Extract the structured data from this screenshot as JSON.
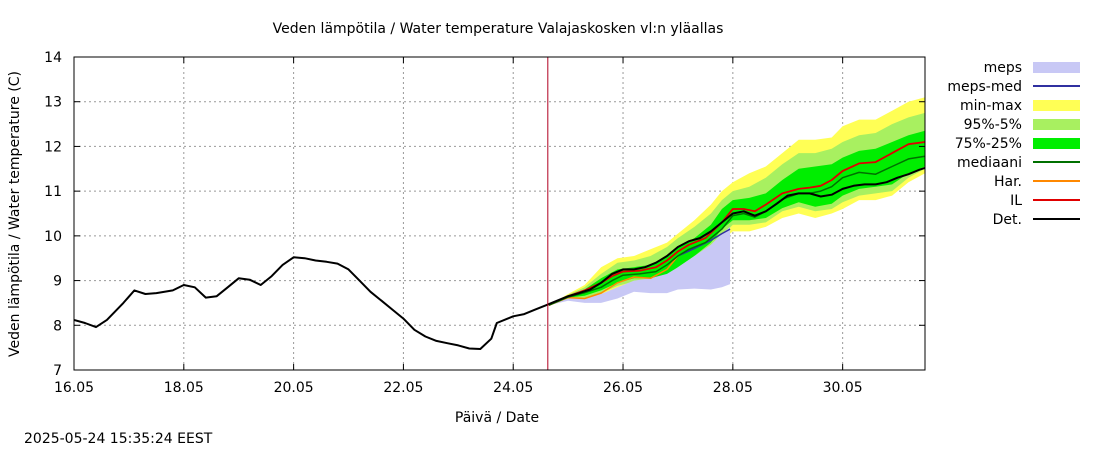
{
  "chart_data": {
    "type": "area",
    "title": "Veden lämpötila / Water temperature Valajaskosken vl:n yläallas",
    "xlabel": "Päivä / Date",
    "ylabel": "Veden lämpötila / Water temperature (C)",
    "timestamp": "2025-05-24 15:35:24 EEST",
    "xlim": [
      16.0,
      31.5
    ],
    "ylim": [
      7,
      14
    ],
    "x_ticks": [
      {
        "value": 16.0,
        "label": "16.05"
      },
      {
        "value": 18.0,
        "label": "18.05"
      },
      {
        "value": 20.0,
        "label": "20.05"
      },
      {
        "value": 22.0,
        "label": "22.05"
      },
      {
        "value": 24.0,
        "label": "24.05"
      },
      {
        "value": 26.0,
        "label": "26.05"
      },
      {
        "value": 28.0,
        "label": "28.05"
      },
      {
        "value": 30.0,
        "label": "30.05"
      }
    ],
    "y_ticks": [
      7,
      8,
      9,
      10,
      11,
      12,
      13,
      14
    ],
    "grid": true,
    "now_marker": 24.63,
    "legend_position": "right",
    "colors": {
      "meps": "#c8c8f5",
      "meps_med": "#3030a0",
      "min_max": "#ffff55",
      "p95_5": "#a8f060",
      "p75_25": "#00ee00",
      "mediaani": "#007000",
      "har": "#ff8800",
      "il": "#e00000",
      "det": "#000000",
      "now_line": "#b00020",
      "grid": "#999999"
    },
    "legend": [
      {
        "key": "meps",
        "label": "meps",
        "kind": "band"
      },
      {
        "key": "meps_med",
        "label": "meps-med",
        "kind": "line"
      },
      {
        "key": "min_max",
        "label": "min-max",
        "kind": "band"
      },
      {
        "key": "p95_5",
        "label": "95%-5%",
        "kind": "band"
      },
      {
        "key": "p75_25",
        "label": "75%-25%",
        "kind": "band"
      },
      {
        "key": "mediaani",
        "label": "mediaani",
        "kind": "line"
      },
      {
        "key": "har",
        "label": "Har.",
        "kind": "line"
      },
      {
        "key": "il",
        "label": "IL",
        "kind": "line"
      },
      {
        "key": "det",
        "label": "Det.",
        "kind": "line"
      }
    ],
    "series": {
      "det": {
        "x": [
          16.0,
          16.2,
          16.4,
          16.6,
          16.9,
          17.1,
          17.3,
          17.5,
          17.8,
          18.0,
          18.2,
          18.4,
          18.6,
          18.8,
          19.0,
          19.2,
          19.4,
          19.6,
          19.8,
          20.0,
          20.2,
          20.4,
          20.6,
          20.8,
          21.0,
          21.2,
          21.4,
          21.6,
          21.8,
          22.0,
          22.2,
          22.4,
          22.6,
          22.8,
          23.0,
          23.2,
          23.4,
          23.6,
          23.7,
          23.9,
          24.0,
          24.2,
          24.4,
          24.6,
          24.8,
          25.0,
          25.2,
          25.4,
          25.6,
          25.8,
          26.0,
          26.2,
          26.4,
          26.6,
          26.8,
          27.0,
          27.2,
          27.4,
          27.6,
          27.8,
          28.0,
          28.2,
          28.4,
          28.6,
          28.8,
          29.0,
          29.2,
          29.4,
          29.6,
          29.8,
          30.0,
          30.2,
          30.4,
          30.6,
          30.8,
          31.0,
          31.2,
          31.4,
          31.5
        ],
        "y": [
          8.12,
          8.05,
          7.96,
          8.12,
          8.5,
          8.78,
          8.7,
          8.72,
          8.78,
          8.9,
          8.85,
          8.62,
          8.65,
          8.85,
          9.05,
          9.02,
          8.9,
          9.1,
          9.35,
          9.52,
          9.5,
          9.45,
          9.42,
          9.38,
          9.25,
          9.0,
          8.75,
          8.55,
          8.35,
          8.15,
          7.9,
          7.75,
          7.65,
          7.6,
          7.55,
          7.48,
          7.47,
          7.7,
          8.05,
          8.15,
          8.2,
          8.25,
          8.35,
          8.45,
          8.55,
          8.65,
          8.72,
          8.8,
          8.95,
          9.15,
          9.25,
          9.25,
          9.3,
          9.4,
          9.55,
          9.75,
          9.88,
          9.95,
          10.1,
          10.3,
          10.5,
          10.55,
          10.45,
          10.55,
          10.72,
          10.9,
          10.95,
          10.95,
          10.88,
          10.92,
          11.05,
          11.12,
          11.15,
          11.15,
          11.2,
          11.3,
          11.38,
          11.48,
          11.52
        ]
      },
      "il": {
        "x": [
          24.65,
          25.0,
          25.3,
          25.6,
          25.8,
          26.0,
          26.3,
          26.6,
          26.8,
          27.0,
          27.2,
          27.5,
          27.8,
          28.0,
          28.2,
          28.4,
          28.6,
          28.9,
          29.2,
          29.4,
          29.6,
          29.8,
          30.0,
          30.3,
          30.6,
          30.9,
          31.2,
          31.5
        ],
        "y": [
          8.45,
          8.65,
          8.78,
          8.95,
          9.1,
          9.2,
          9.22,
          9.3,
          9.45,
          9.65,
          9.8,
          9.95,
          10.3,
          10.6,
          10.6,
          10.55,
          10.7,
          10.95,
          11.05,
          11.08,
          11.12,
          11.25,
          11.45,
          11.62,
          11.65,
          11.85,
          12.05,
          12.1
        ]
      },
      "mediaani": {
        "x": [
          24.65,
          25.0,
          25.3,
          25.6,
          25.8,
          26.0,
          26.3,
          26.6,
          26.8,
          27.0,
          27.2,
          27.5,
          27.8,
          28.0,
          28.2,
          28.4,
          28.6,
          28.9,
          29.2,
          29.4,
          29.6,
          29.8,
          30.0,
          30.3,
          30.6,
          30.9,
          31.2,
          31.5
        ],
        "y": [
          8.45,
          8.63,
          8.73,
          8.85,
          9.0,
          9.12,
          9.15,
          9.2,
          9.35,
          9.55,
          9.7,
          9.85,
          10.15,
          10.45,
          10.5,
          10.42,
          10.55,
          10.82,
          10.95,
          10.95,
          11.0,
          11.1,
          11.3,
          11.42,
          11.38,
          11.55,
          11.72,
          11.78
        ]
      },
      "har": {
        "x": [
          24.65,
          25.0,
          25.3,
          25.6,
          25.9,
          26.2,
          26.5,
          26.8,
          27.0
        ],
        "y": [
          8.45,
          8.62,
          8.6,
          8.72,
          8.95,
          9.08,
          9.05,
          9.25,
          9.55
        ]
      },
      "meps_med": {
        "x": [
          27.0,
          27.3,
          27.6,
          27.8,
          27.95
        ],
        "y": [
          9.55,
          9.72,
          9.9,
          10.05,
          10.15
        ]
      },
      "min_max": {
        "x": [
          24.65,
          25.0,
          25.3,
          25.6,
          25.9,
          26.2,
          26.5,
          26.8,
          27.0,
          27.3,
          27.6,
          27.8,
          28.0,
          28.3,
          28.6,
          28.9,
          29.2,
          29.5,
          29.8,
          30.0,
          30.3,
          30.6,
          30.9,
          31.2,
          31.5
        ],
        "lower": [
          8.45,
          8.58,
          8.6,
          8.68,
          8.82,
          8.9,
          8.9,
          8.98,
          9.1,
          9.35,
          9.6,
          9.9,
          10.1,
          10.1,
          10.2,
          10.4,
          10.5,
          10.4,
          10.5,
          10.6,
          10.8,
          10.8,
          10.9,
          11.2,
          11.4
        ],
        "upper": [
          8.45,
          8.7,
          8.9,
          9.3,
          9.5,
          9.55,
          9.7,
          9.85,
          10.05,
          10.35,
          10.7,
          11.0,
          11.2,
          11.4,
          11.55,
          11.85,
          12.15,
          12.15,
          12.2,
          12.45,
          12.6,
          12.6,
          12.8,
          13.0,
          13.1
        ]
      },
      "p95_5": {
        "x": [
          24.65,
          25.0,
          25.3,
          25.6,
          25.9,
          26.2,
          26.5,
          26.8,
          27.0,
          27.3,
          27.6,
          27.8,
          28.0,
          28.3,
          28.6,
          28.9,
          29.2,
          29.5,
          29.8,
          30.0,
          30.3,
          30.6,
          30.9,
          31.2,
          31.5
        ],
        "lower": [
          8.45,
          8.6,
          8.62,
          8.72,
          8.88,
          8.98,
          8.98,
          9.05,
          9.2,
          9.45,
          9.75,
          10.0,
          10.25,
          10.25,
          10.3,
          10.55,
          10.65,
          10.55,
          10.6,
          10.75,
          10.9,
          10.95,
          11.0,
          11.3,
          11.5
        ],
        "upper": [
          8.45,
          8.68,
          8.85,
          9.15,
          9.4,
          9.45,
          9.55,
          9.75,
          9.95,
          10.2,
          10.5,
          10.8,
          11.0,
          11.1,
          11.3,
          11.6,
          11.85,
          11.85,
          11.95,
          12.1,
          12.25,
          12.3,
          12.5,
          12.65,
          12.75
        ]
      },
      "p75_25": {
        "x": [
          24.65,
          25.0,
          25.3,
          25.6,
          25.9,
          26.2,
          26.5,
          26.8,
          27.0,
          27.3,
          27.6,
          27.8,
          28.0,
          28.3,
          28.6,
          28.9,
          29.2,
          29.5,
          29.8,
          30.0,
          30.3,
          30.6,
          30.9,
          31.2,
          31.5
        ],
        "lower": [
          8.45,
          8.62,
          8.66,
          8.78,
          8.95,
          9.05,
          9.05,
          9.12,
          9.3,
          9.55,
          9.85,
          10.15,
          10.35,
          10.35,
          10.4,
          10.62,
          10.75,
          10.65,
          10.72,
          10.9,
          11.05,
          11.1,
          11.15,
          11.4,
          11.55
        ],
        "upper": [
          8.45,
          8.66,
          8.8,
          9.05,
          9.25,
          9.3,
          9.35,
          9.55,
          9.75,
          9.95,
          10.25,
          10.6,
          10.8,
          10.85,
          10.95,
          11.25,
          11.5,
          11.55,
          11.6,
          11.75,
          11.9,
          11.95,
          12.1,
          12.25,
          12.35
        ]
      },
      "meps": {
        "x": [
          24.65,
          25.0,
          25.3,
          25.6,
          25.9,
          26.2,
          26.5,
          26.8,
          27.0,
          27.3,
          27.6,
          27.8,
          27.95
        ],
        "lower": [
          8.45,
          8.55,
          8.5,
          8.5,
          8.6,
          8.75,
          8.72,
          8.72,
          8.8,
          8.82,
          8.8,
          8.85,
          8.92
        ],
        "upper": [
          8.45,
          8.6,
          8.6,
          8.7,
          8.85,
          9.0,
          9.05,
          9.15,
          9.3,
          9.55,
          9.8,
          10.05,
          10.2
        ]
      }
    }
  }
}
